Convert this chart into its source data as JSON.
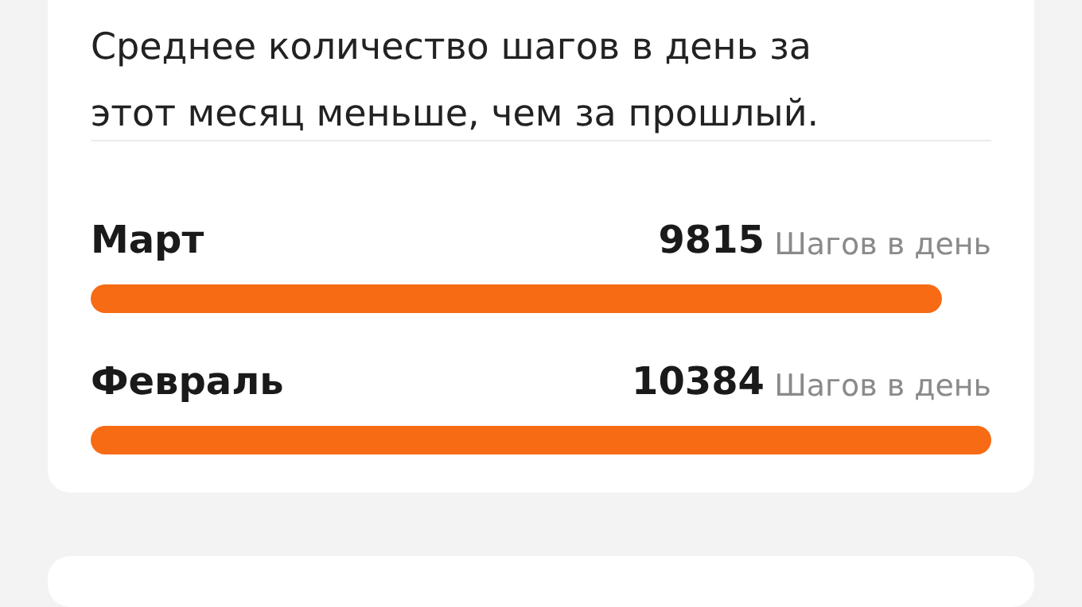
{
  "chart_data": {
    "type": "bar",
    "orientation": "horizontal",
    "title": "Среднее количество шагов в день за\nэтот месяц меньше, чем за прошлый.",
    "categories": [
      "Март",
      "Февраль"
    ],
    "values": [
      9815,
      10384
    ],
    "color": "#f76b15",
    "data_labels": true,
    "annotations": [
      "Шагов в день",
      "Шагов в день"
    ],
    "tick_labels": false
  }
}
